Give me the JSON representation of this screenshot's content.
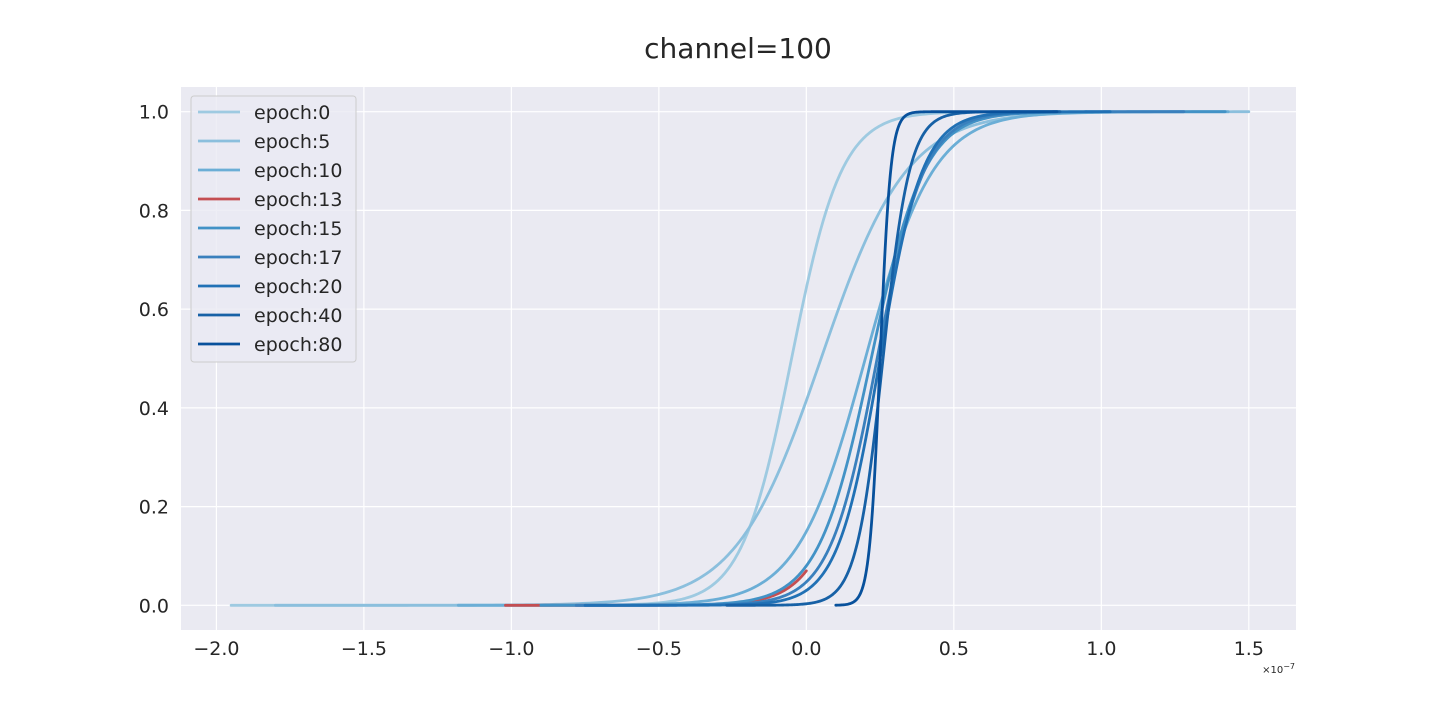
{
  "chart_data": {
    "type": "line",
    "title": "channel=100",
    "xlabel": "",
    "ylabel": "",
    "x_offset_label": "×10⁻⁷",
    "x_scale_label_base": "×10",
    "x_scale_label_exp": "−7",
    "xlim": [
      -2.12,
      1.66
    ],
    "ylim": [
      -0.05,
      1.05
    ],
    "xticks": [
      -2.0,
      -1.5,
      -1.0,
      -0.5,
      0.0,
      0.5,
      1.0,
      1.5
    ],
    "xtick_labels": [
      "−2.0",
      "−1.5",
      "−1.0",
      "−0.5",
      "0.0",
      "0.5",
      "1.0",
      "1.5"
    ],
    "yticks": [
      0.0,
      0.2,
      0.4,
      0.6,
      0.8,
      1.0
    ],
    "ytick_labels": [
      "0.0",
      "0.2",
      "0.4",
      "0.6",
      "0.8",
      "1.0"
    ],
    "grid": true,
    "legend_position": "top-left",
    "colors": {
      "background": "#eaeaf2",
      "grid": "#ffffff",
      "text": "#262626"
    },
    "series": [
      {
        "name": "epoch:0",
        "color": "#9ecae1",
        "mu": -0.05,
        "s": 0.085,
        "xmin": -1.95,
        "xmax": 0.95
      },
      {
        "name": "epoch:5",
        "color": "#8bbfdd",
        "mu": 0.05,
        "s": 0.145,
        "xmin": -1.8,
        "xmax": 1.5
      },
      {
        "name": "epoch:10",
        "color": "#6baed6",
        "mu": 0.2,
        "s": 0.115,
        "xmin": -1.18,
        "xmax": 1.43
      },
      {
        "name": "epoch:13",
        "color": "#c44e52",
        "mu": 0.22,
        "s": 0.085,
        "xmin": -1.02,
        "xmax": 0.0
      },
      {
        "name": "epoch:15",
        "color": "#4292c6",
        "mu": 0.22,
        "s": 0.09,
        "xmin": -0.9,
        "xmax": 1.42
      },
      {
        "name": "epoch:17",
        "color": "#3a80bd",
        "mu": 0.24,
        "s": 0.08,
        "xmin": -0.78,
        "xmax": 1.28
      },
      {
        "name": "epoch:20",
        "color": "#2171b5",
        "mu": 0.25,
        "s": 0.072,
        "xmin": -0.75,
        "xmax": 1.03
      },
      {
        "name": "epoch:40",
        "color": "#1761a6",
        "mu": 0.26,
        "s": 0.045,
        "xmin": -0.27,
        "xmax": 0.86
      },
      {
        "name": "epoch:80",
        "color": "#08519c",
        "mu": 0.25,
        "s": 0.018,
        "xmin": 0.1,
        "xmax": 0.85
      }
    ]
  }
}
